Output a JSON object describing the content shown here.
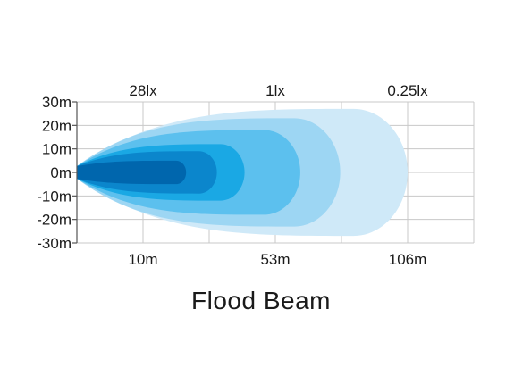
{
  "chart_data": {
    "type": "beam-pattern",
    "title": "Flood Beam",
    "y_ticks": [
      "30m",
      "20m",
      "10m",
      "0m",
      "-10m",
      "-20m",
      "-30m"
    ],
    "y_values": [
      30,
      20,
      10,
      0,
      -10,
      -20,
      -30
    ],
    "ylim": [
      -30,
      30
    ],
    "top_labels": [
      {
        "label": "28lx",
        "distance_m": 10
      },
      {
        "label": "1lx",
        "distance_m": 53
      },
      {
        "label": "0.25lx",
        "distance_m": 106
      }
    ],
    "bottom_labels": [
      {
        "label": "10m",
        "distance_m": 10
      },
      {
        "label": "53m",
        "distance_m": 53
      },
      {
        "label": "106m",
        "distance_m": 106
      }
    ],
    "grid": true,
    "beam_zones": [
      {
        "reach_m": 106,
        "half_width_m": 27,
        "color": "#cfe9f8"
      },
      {
        "reach_m": 79,
        "half_width_m": 23,
        "color": "#9dd6f3"
      },
      {
        "reach_m": 63,
        "half_width_m": 18,
        "color": "#5cc0ee"
      },
      {
        "reach_m": 43,
        "half_width_m": 12,
        "color": "#1aa8e4"
      },
      {
        "reach_m": 34,
        "half_width_m": 9,
        "color": "#0b86cc"
      },
      {
        "reach_m": 24,
        "half_width_m": 5,
        "color": "#0066ad"
      }
    ]
  }
}
